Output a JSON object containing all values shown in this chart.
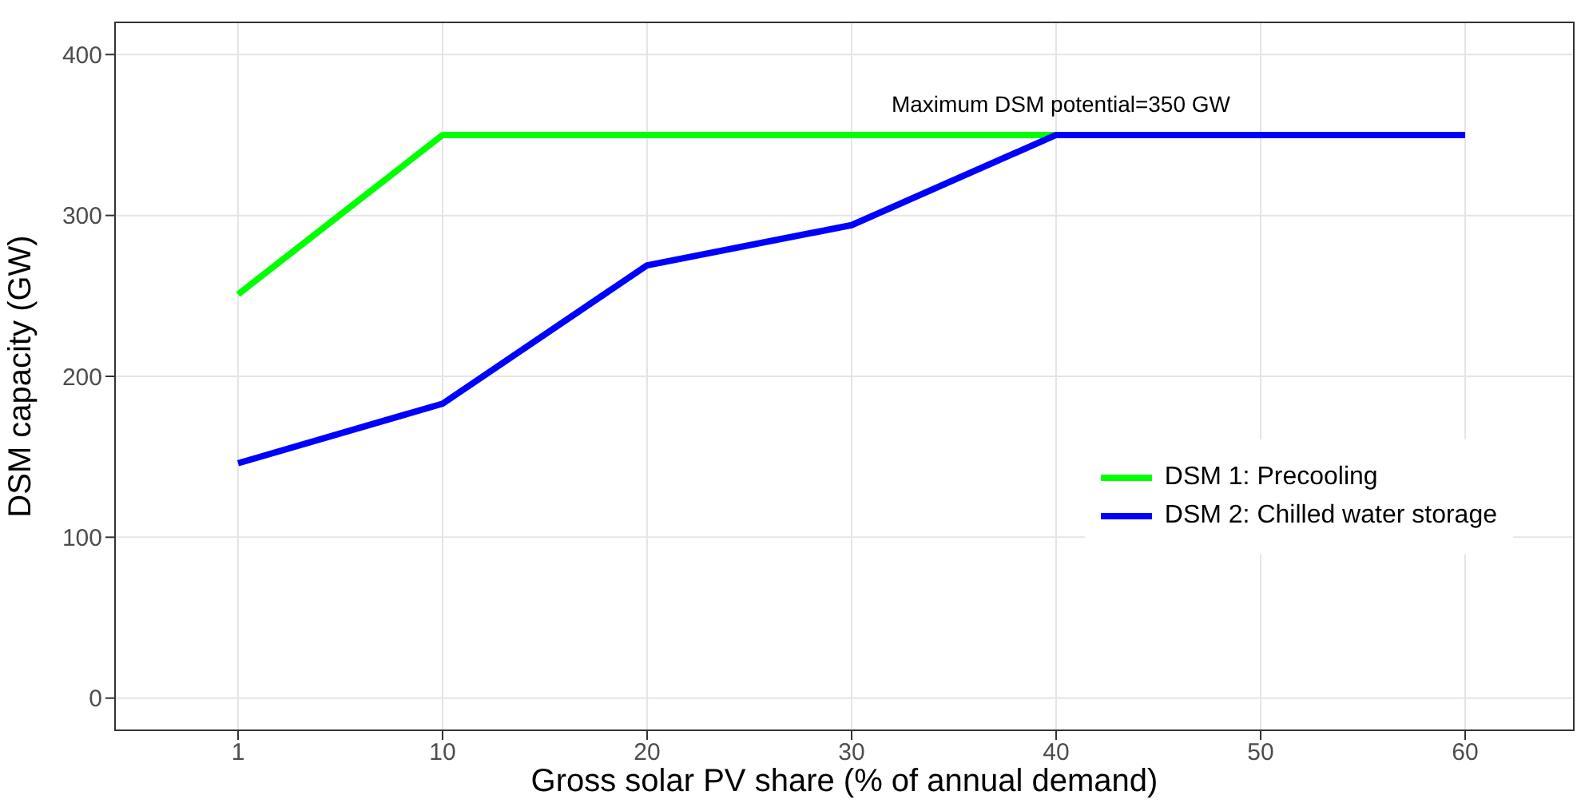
{
  "chart_data": {
    "type": "line",
    "xlabel": "Gross solar PV share (% of annual demand)",
    "ylabel": "DSM capacity (GW)",
    "categories": [
      "1",
      "10",
      "20",
      "30",
      "40",
      "50",
      "60"
    ],
    "series": [
      {
        "name": "DSM 1: Precooling",
        "color": "#00ff00",
        "values": [
          251,
          350,
          350,
          350,
          350,
          null,
          null
        ]
      },
      {
        "name": "DSM 2: Chilled water storage",
        "color": "#0000ff",
        "values": [
          146,
          183,
          269,
          294,
          350,
          350,
          350
        ]
      }
    ],
    "ylim": [
      -20,
      420
    ],
    "yticks": [
      0,
      100,
      200,
      300,
      400
    ],
    "grid": true,
    "legend": "right",
    "marker": "none",
    "line_style": "solid",
    "annotations": [
      "Maximum DSM potential=350 GW"
    ]
  }
}
